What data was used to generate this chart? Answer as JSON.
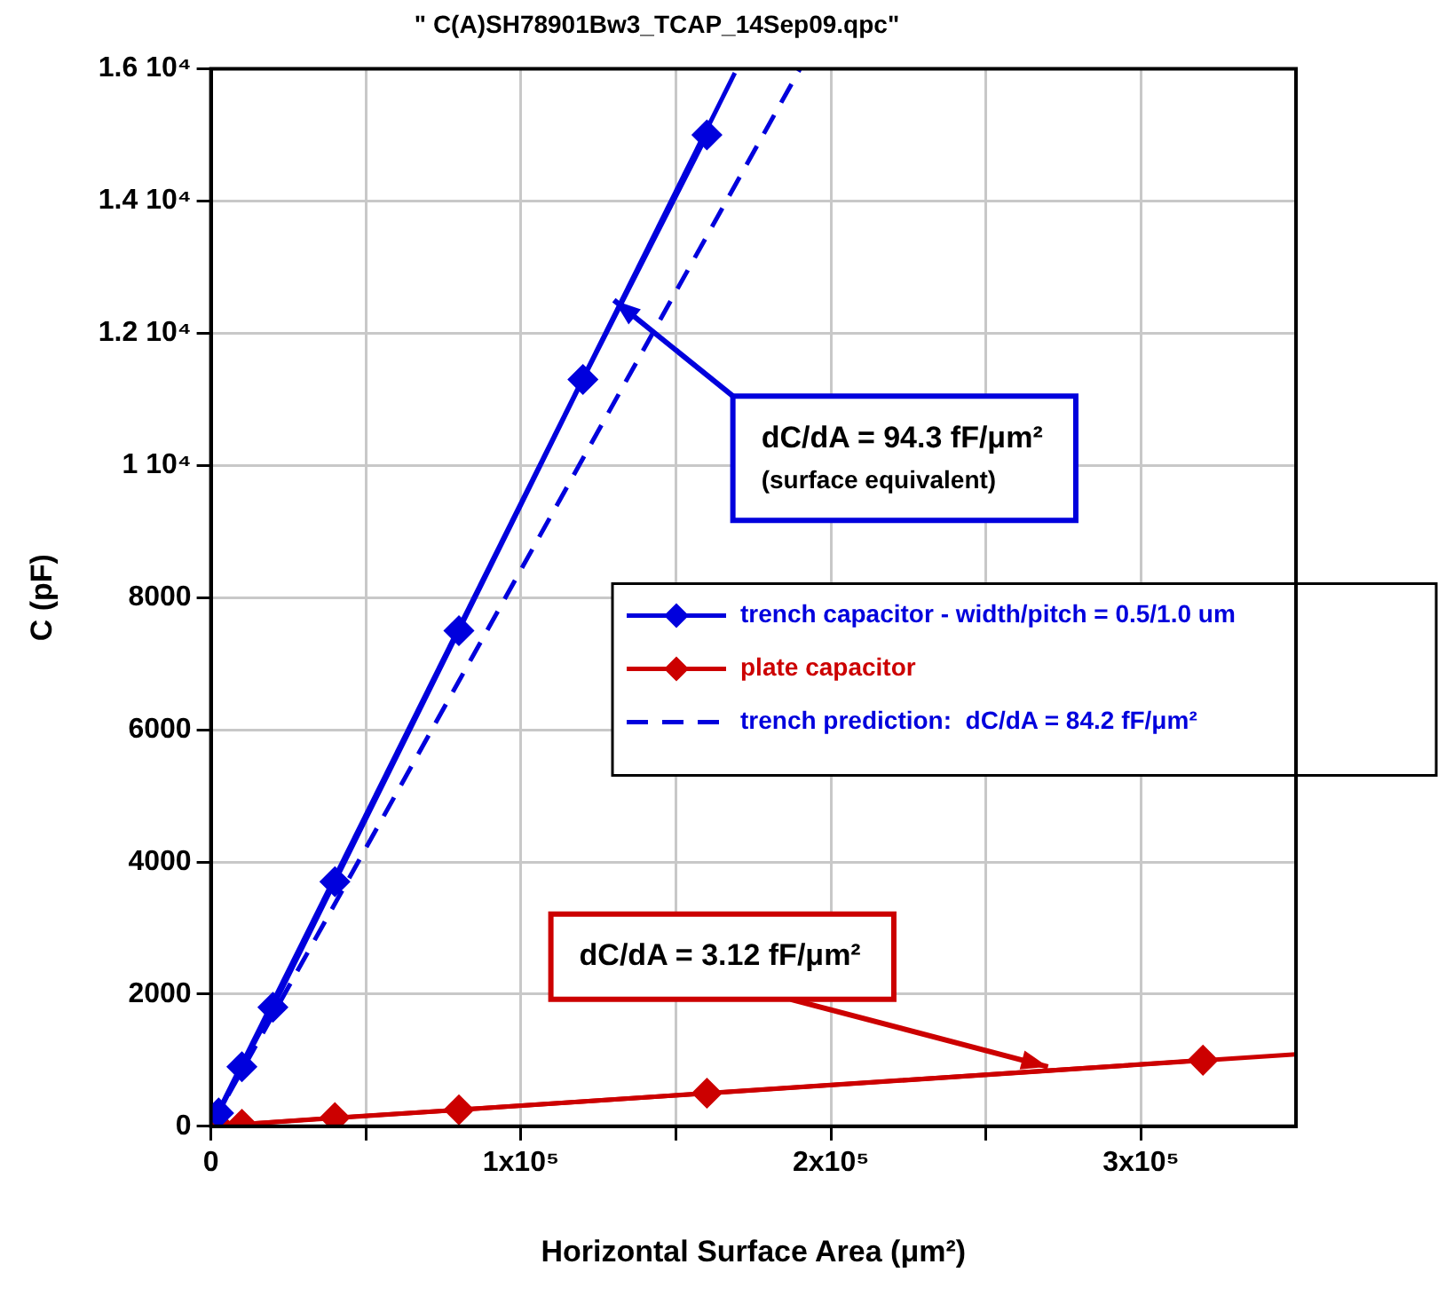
{
  "chart_data": {
    "type": "line",
    "title": "\" C(A)SH78901Bw3_TCAP_14Sep09.qpc\"",
    "xlabel": "Horizontal Surface Area (μm²)",
    "ylabel": "C (pF)",
    "xlim": [
      0,
      350000
    ],
    "xticks": [
      0,
      {
        "value": 50000,
        "label": null
      },
      {
        "value": 100000,
        "label": "1x10⁵"
      },
      {
        "value": 150000,
        "label": null
      },
      {
        "value": 200000,
        "label": "2x10⁵"
      },
      {
        "value": 250000,
        "label": null
      },
      {
        "value": 300000,
        "label": "3x10⁵"
      }
    ],
    "ylim": [
      0,
      16000
    ],
    "yticks": [
      0,
      2000,
      4000,
      6000,
      8000,
      {
        "value": 10000,
        "label": "1 10⁴"
      },
      {
        "value": 12000,
        "label": "1.2 10⁴"
      },
      {
        "value": 14000,
        "label": "1.4 10⁴"
      },
      {
        "value": 16000,
        "label": "1.6 10⁴"
      }
    ],
    "grid": true,
    "legend": "right",
    "marker": "diamond",
    "series": [
      {
        "name": "trench capacitor - width/pitch = 0.5/1.0 um",
        "color": "#0000dd",
        "x": [
          2500,
          10000,
          20000,
          40000,
          80000,
          120000,
          160000
        ],
        "values": [
          200,
          900,
          1800,
          3700,
          7500,
          11300,
          15000
        ]
      },
      {
        "name": "plate capacitor",
        "color": "#cc0000",
        "x": [
          2500,
          10000,
          40000,
          80000,
          160000,
          320000
        ],
        "values": [
          10,
          30,
          130,
          250,
          500,
          1000
        ]
      },
      {
        "name": "trench prediction:  dC/dA = 84.2 fF/μm²",
        "color": "#0000dd",
        "x": [
          0,
          190000
        ],
        "values": [
          0,
          16000
        ],
        "marker": "none",
        "line_style": "dashed"
      },
      {
        "color": "#0000dd",
        "x": [
          0,
          169000
        ],
        "values": [
          0,
          15940
        ],
        "marker": "none"
      },
      {
        "color": "#cc0000",
        "x": [
          0,
          350000
        ],
        "values": [
          0,
          1090
        ],
        "marker": "none"
      }
    ],
    "annotations": [
      {
        "text": "dC/dA = 94.3 fF/μm²\n(surface equivalent)",
        "x": 130000,
        "y": 12500
      },
      {
        "text": "dC/dA = 3.12 fF/μm²",
        "x": 270000,
        "y": 900
      }
    ]
  }
}
